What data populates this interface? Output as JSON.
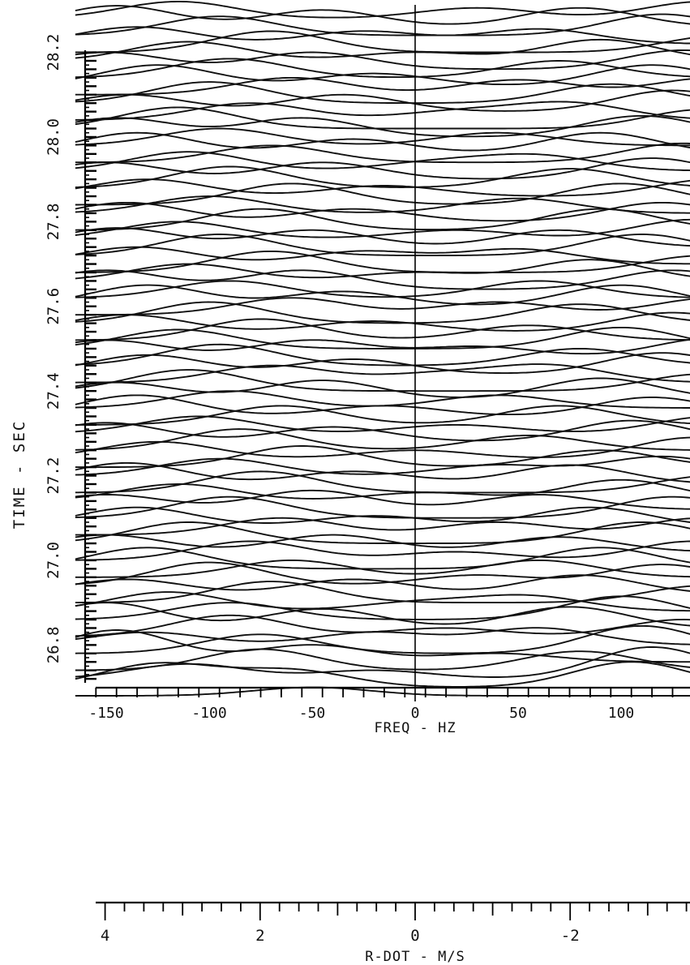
{
  "chart_data": {
    "type": "line",
    "title": "",
    "xlabel": "FREQ - HZ",
    "x2label": "R-DOT - M/S",
    "ylabel": "TIME - SEC",
    "x_ticks": [
      -150,
      -100,
      -50,
      0,
      50,
      100
    ],
    "x_tick_labels": [
      "-150",
      "-100",
      "-50",
      "0",
      "50",
      "100"
    ],
    "x_range": [
      -165,
      165
    ],
    "x2_ticks": [
      4,
      2,
      0,
      -2
    ],
    "x2_tick_labels": [
      "4",
      "2",
      "0",
      "-2"
    ],
    "x2_range": [
      4.0,
      -3.6
    ],
    "y_ticks": [
      26.8,
      27.0,
      27.2,
      27.4,
      27.6,
      27.8,
      28.0,
      28.2
    ],
    "y_tick_labels": [
      "26.8",
      "27.0",
      "27.2",
      "27.4",
      "27.6",
      "27.8",
      "28.0",
      "28.2"
    ],
    "y_range": [
      26.66,
      28.3
    ],
    "frame_spacing_sec": 0.02,
    "frame_start_sec": 26.68,
    "frame_count": 81,
    "grid": false,
    "legend": "none",
    "series": [
      {
        "peaks": [
          [
            -50,
            0.02
          ]
        ]
      },
      {
        "peaks": [
          [
            -125,
            0.055
          ],
          [
            -60,
            0.04
          ],
          [
            105,
            0.06
          ]
        ]
      },
      {
        "peaks": [
          [
            -110,
            0.035
          ],
          [
            -20,
            0.02
          ],
          [
            115,
            0.075
          ]
        ]
      },
      {
        "peaks": [
          [
            -75,
            0.05
          ],
          [
            80,
            0.045
          ]
        ]
      },
      {
        "peaks": [
          [
            -145,
            0.075
          ],
          [
            -50,
            0.04
          ],
          [
            40,
            0.02
          ]
        ]
      },
      {
        "peaks": [
          [
            -75,
            0.045
          ],
          [
            110,
            0.065
          ]
        ]
      },
      {
        "peaks": [
          [
            -130,
            0.03
          ],
          [
            -20,
            0.03
          ],
          [
            60,
            0.04
          ]
        ]
      },
      {
        "peaks": [
          [
            -90,
            0.05
          ],
          [
            15,
            0.02
          ],
          [
            130,
            0.04
          ]
        ]
      },
      {
        "peaks": [
          [
            -150,
            0.06
          ],
          [
            -45,
            0.045
          ],
          [
            75,
            0.05
          ]
        ]
      },
      {
        "peaks": [
          [
            -90,
            0.04
          ],
          [
            100,
            0.055
          ]
        ]
      },
      {
        "peaks": [
          [
            -120,
            0.045
          ],
          [
            0,
            0.02
          ],
          [
            55,
            0.035
          ]
        ]
      },
      {
        "peaks": [
          [
            -70,
            0.05
          ],
          [
            140,
            0.04
          ]
        ]
      },
      {
        "peaks": [
          [
            -140,
            0.035
          ],
          [
            -30,
            0.035
          ],
          [
            80,
            0.045
          ]
        ]
      },
      {
        "peaks": [
          [
            -100,
            0.055
          ],
          [
            30,
            0.025
          ],
          [
            120,
            0.05
          ]
        ]
      },
      {
        "peaks": [
          [
            -60,
            0.04
          ],
          [
            60,
            0.04
          ]
        ]
      },
      {
        "peaks": [
          [
            -130,
            0.05
          ],
          [
            90,
            0.05
          ]
        ]
      },
      {
        "peaks": [
          [
            -80,
            0.045
          ],
          [
            20,
            0.02
          ],
          [
            135,
            0.045
          ]
        ]
      },
      {
        "peaks": [
          [
            -150,
            0.04
          ],
          [
            -40,
            0.04
          ],
          [
            70,
            0.035
          ]
        ]
      },
      {
        "peaks": [
          [
            -110,
            0.05
          ],
          [
            110,
            0.05
          ]
        ]
      },
      {
        "peaks": [
          [
            -65,
            0.04
          ],
          [
            40,
            0.03
          ],
          [
            140,
            0.04
          ]
        ]
      },
      {
        "peaks": [
          [
            -135,
            0.045
          ],
          [
            -20,
            0.025
          ],
          [
            85,
            0.045
          ]
        ]
      },
      {
        "peaks": [
          [
            -90,
            0.05
          ],
          [
            125,
            0.05
          ]
        ]
      },
      {
        "peaks": [
          [
            -150,
            0.035
          ],
          [
            -50,
            0.045
          ],
          [
            60,
            0.035
          ]
        ]
      },
      {
        "peaks": [
          [
            -115,
            0.04
          ],
          [
            5,
            0.02
          ],
          [
            100,
            0.05
          ]
        ]
      },
      {
        "peaks": [
          [
            -75,
            0.05
          ],
          [
            145,
            0.04
          ]
        ]
      },
      {
        "peaks": [
          [
            -140,
            0.05
          ],
          [
            -30,
            0.03
          ],
          [
            75,
            0.045
          ]
        ]
      },
      {
        "peaks": [
          [
            -95,
            0.04
          ],
          [
            40,
            0.025
          ],
          [
            120,
            0.045
          ]
        ]
      },
      {
        "peaks": [
          [
            -55,
            0.05
          ],
          [
            90,
            0.04
          ]
        ]
      },
      {
        "peaks": [
          [
            -125,
            0.04
          ],
          [
            0,
            0.02
          ],
          [
            135,
            0.05
          ]
        ]
      },
      {
        "peaks": [
          [
            -85,
            0.05
          ],
          [
            55,
            0.035
          ]
        ]
      },
      {
        "peaks": [
          [
            -150,
            0.045
          ],
          [
            -40,
            0.035
          ],
          [
            105,
            0.05
          ]
        ]
      },
      {
        "peaks": [
          [
            -105,
            0.04
          ],
          [
            20,
            0.02
          ],
          [
            145,
            0.04
          ]
        ]
      },
      {
        "peaks": [
          [
            -65,
            0.045
          ],
          [
            70,
            0.045
          ]
        ]
      },
      {
        "peaks": [
          [
            -135,
            0.05
          ],
          [
            -15,
            0.025
          ],
          [
            115,
            0.045
          ]
        ]
      },
      {
        "peaks": [
          [
            -90,
            0.04
          ],
          [
            40,
            0.03
          ]
        ]
      },
      {
        "peaks": [
          [
            -145,
            0.04
          ],
          [
            -45,
            0.045
          ],
          [
            90,
            0.05
          ]
        ]
      },
      {
        "peaks": [
          [
            -110,
            0.05
          ],
          [
            140,
            0.04
          ]
        ]
      },
      {
        "peaks": [
          [
            -70,
            0.04
          ],
          [
            10,
            0.02
          ],
          [
            65,
            0.04
          ]
        ]
      },
      {
        "peaks": [
          [
            -130,
            0.045
          ],
          [
            -30,
            0.035
          ],
          [
            120,
            0.05
          ]
        ]
      },
      {
        "peaks": [
          [
            -95,
            0.05
          ],
          [
            80,
            0.04
          ]
        ]
      },
      {
        "peaks": [
          [
            -150,
            0.04
          ],
          [
            -50,
            0.04
          ],
          [
            30,
            0.025
          ],
          [
            145,
            0.045
          ]
        ]
      },
      {
        "peaks": [
          [
            -115,
            0.045
          ],
          [
            100,
            0.05
          ]
        ]
      },
      {
        "peaks": [
          [
            -75,
            0.05
          ],
          [
            55,
            0.035
          ]
        ]
      },
      {
        "peaks": [
          [
            -140,
            0.04
          ],
          [
            -20,
            0.025
          ],
          [
            125,
            0.045
          ]
        ]
      },
      {
        "peaks": [
          [
            -100,
            0.05
          ],
          [
            80,
            0.045
          ]
        ]
      },
      {
        "peaks": [
          [
            -60,
            0.04
          ],
          [
            40,
            0.03
          ],
          [
            145,
            0.04
          ]
        ]
      },
      {
        "peaks": [
          [
            -130,
            0.05
          ],
          [
            -35,
            0.035
          ],
          [
            100,
            0.05
          ]
        ]
      },
      {
        "peaks": [
          [
            -90,
            0.04
          ],
          [
            60,
            0.04
          ]
        ]
      },
      {
        "peaks": [
          [
            -150,
            0.045
          ],
          [
            -55,
            0.045
          ],
          [
            125,
            0.045
          ]
        ]
      },
      {
        "peaks": [
          [
            -110,
            0.04
          ],
          [
            0,
            0.02
          ],
          [
            85,
            0.05
          ]
        ]
      },
      {
        "peaks": [
          [
            -70,
            0.05
          ],
          [
            140,
            0.04
          ]
        ]
      },
      {
        "peaks": [
          [
            -135,
            0.04
          ],
          [
            -25,
            0.03
          ],
          [
            50,
            0.035
          ]
        ]
      },
      {
        "peaks": [
          [
            -95,
            0.05
          ],
          [
            110,
            0.05
          ]
        ]
      },
      {
        "peaks": [
          [
            -145,
            0.045
          ],
          [
            -50,
            0.04
          ],
          [
            70,
            0.04
          ]
        ]
      },
      {
        "peaks": [
          [
            -115,
            0.04
          ],
          [
            20,
            0.02
          ],
          [
            135,
            0.045
          ]
        ]
      },
      {
        "peaks": [
          [
            -75,
            0.05
          ],
          [
            90,
            0.05
          ]
        ]
      },
      {
        "peaks": [
          [
            -140,
            0.045
          ],
          [
            -30,
            0.03
          ],
          [
            120,
            0.045
          ]
        ]
      },
      {
        "peaks": [
          [
            -100,
            0.04
          ],
          [
            50,
            0.035
          ]
        ]
      },
      {
        "peaks": [
          [
            -60,
            0.05
          ],
          [
            100,
            0.05
          ]
        ]
      },
      {
        "peaks": [
          [
            -130,
            0.04
          ],
          [
            -15,
            0.025
          ],
          [
            145,
            0.04
          ]
        ]
      },
      {
        "peaks": [
          [
            -90,
            0.05
          ],
          [
            75,
            0.045
          ]
        ]
      },
      {
        "peaks": [
          [
            -150,
            0.04
          ],
          [
            -45,
            0.04
          ],
          [
            115,
            0.05
          ]
        ]
      },
      {
        "peaks": [
          [
            -110,
            0.045
          ],
          [
            10,
            0.02
          ],
          [
            60,
            0.035
          ]
        ]
      },
      {
        "peaks": [
          [
            -70,
            0.04
          ],
          [
            130,
            0.045
          ]
        ]
      },
      {
        "peaks": [
          [
            -135,
            0.05
          ],
          [
            -30,
            0.035
          ],
          [
            90,
            0.05
          ]
        ]
      },
      {
        "peaks": [
          [
            -95,
            0.04
          ],
          [
            40,
            0.03
          ]
        ]
      },
      {
        "peaks": [
          [
            -145,
            0.045
          ],
          [
            -55,
            0.045
          ],
          [
            110,
            0.05
          ]
        ]
      },
      {
        "peaks": [
          [
            -115,
            0.05
          ],
          [
            140,
            0.045
          ]
        ]
      },
      {
        "peaks": [
          [
            -80,
            0.04
          ],
          [
            20,
            0.02
          ],
          [
            75,
            0.04
          ]
        ]
      },
      {
        "peaks": [
          [
            -140,
            0.04
          ],
          [
            -35,
            0.04
          ],
          [
            125,
            0.05
          ]
        ]
      },
      {
        "peaks": [
          [
            -100,
            0.05
          ],
          [
            95,
            0.045
          ]
        ]
      },
      {
        "peaks": [
          [
            -60,
            0.04
          ],
          [
            50,
            0.035
          ],
          [
            145,
            0.04
          ]
        ]
      },
      {
        "peaks": [
          [
            -125,
            0.05
          ],
          [
            -20,
            0.03
          ],
          [
            115,
            0.05
          ]
        ]
      },
      {
        "peaks": [
          [
            -90,
            0.045
          ],
          [
            70,
            0.04
          ]
        ]
      },
      {
        "peaks": [
          [
            -150,
            0.04
          ],
          [
            -50,
            0.04
          ],
          [
            130,
            0.045
          ]
        ]
      },
      {
        "peaks": [
          [
            -110,
            0.045
          ],
          [
            0,
            0.02
          ],
          [
            90,
            0.05
          ]
        ]
      },
      {
        "peaks": [
          [
            -70,
            0.05
          ],
          [
            150,
            0.04
          ]
        ]
      },
      {
        "peaks": [
          [
            -135,
            0.04
          ],
          [
            -25,
            0.03
          ],
          [
            60,
            0.035
          ]
        ]
      },
      {
        "peaks": [
          [
            -95,
            0.045
          ],
          [
            120,
            0.05
          ]
        ]
      },
      {
        "peaks": [
          [
            -145,
            0.05
          ],
          [
            -45,
            0.04
          ],
          [
            80,
            0.045
          ]
        ]
      },
      {
        "peaks": [
          [
            -115,
            0.04
          ],
          [
            30,
            0.025
          ],
          [
            140,
            0.04
          ]
        ]
      }
    ]
  }
}
